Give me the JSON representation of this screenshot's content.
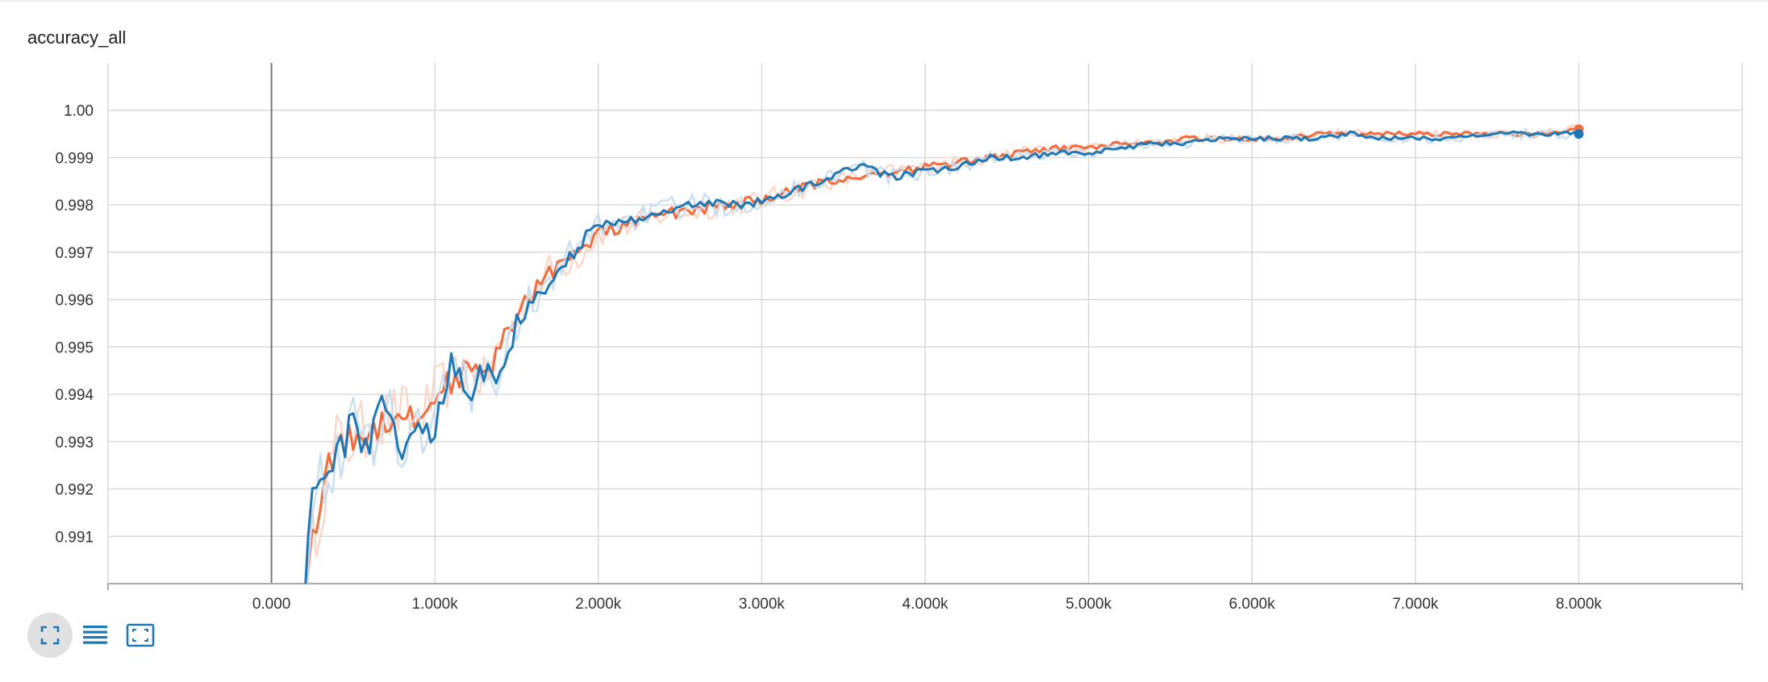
{
  "card": {
    "title": "accuracy_all"
  },
  "toolbar": {
    "buttons": [
      {
        "name": "expand-chart-button",
        "icon": "fullscreen-icon",
        "active": true
      },
      {
        "name": "toggle-y-log-button",
        "icon": "list-lines-icon",
        "active": false
      },
      {
        "name": "fit-domain-button",
        "icon": "fit-to-data-icon",
        "active": false
      }
    ]
  },
  "colors": {
    "orange": "#f26b3c",
    "blue": "#1f77b4",
    "orange_raw": "#fbd3c4",
    "blue_raw": "#c6dbef",
    "grid": "#d9d9d9"
  },
  "chart_data": {
    "type": "line",
    "title": "accuracy_all",
    "xlabel": "",
    "ylabel": "",
    "xlim": [
      -1000,
      9000
    ],
    "ylim": [
      0.99,
      1.001
    ],
    "grid": true,
    "x_ticks": [
      0,
      1000,
      2000,
      3000,
      4000,
      5000,
      6000,
      7000,
      8000
    ],
    "x_tick_labels": [
      "0.000",
      "1.000k",
      "2.000k",
      "3.000k",
      "4.000k",
      "5.000k",
      "6.000k",
      "7.000k",
      "8.000k"
    ],
    "y_ticks": [
      0.991,
      0.992,
      0.993,
      0.994,
      0.995,
      0.996,
      0.997,
      0.998,
      0.999,
      1.0
    ],
    "y_tick_labels": [
      "0.991",
      "0.992",
      "0.993",
      "0.994",
      "0.995",
      "0.996",
      "0.997",
      "0.998",
      "0.999",
      "1.00"
    ],
    "series": [
      {
        "color": "#f26b3c",
        "raw_color": "#fbd3c4",
        "x": [
          200,
          300,
          400,
          500,
          600,
          700,
          800,
          900,
          1000,
          1100,
          1200,
          1300,
          1400,
          1500,
          1600,
          1700,
          1800,
          1900,
          2000,
          2200,
          2400,
          2600,
          2800,
          3000,
          3200,
          3400,
          3600,
          3800,
          4000,
          4200,
          4400,
          4600,
          4800,
          5000,
          5200,
          5400,
          5600,
          5800,
          6000,
          6200,
          6400,
          6600,
          6800,
          7000,
          7200,
          7400,
          7600,
          7800,
          8000
        ],
        "values": [
          0.9899,
          0.9918,
          0.9929,
          0.9931,
          0.9932,
          0.9935,
          0.9936,
          0.9934,
          0.994,
          0.9943,
          0.9945,
          0.9943,
          0.995,
          0.9956,
          0.9962,
          0.9966,
          0.9968,
          0.997,
          0.9974,
          0.9976,
          0.9978,
          0.9979,
          0.998,
          0.9981,
          0.9983,
          0.9985,
          0.9986,
          0.9987,
          0.9988,
          0.9989,
          0.999,
          0.9991,
          0.9992,
          0.9992,
          0.9993,
          0.9993,
          0.9994,
          0.9994,
          0.9994,
          0.9994,
          0.9995,
          0.9995,
          0.9995,
          0.9995,
          0.9995,
          0.9995,
          0.9995,
          0.9995,
          0.9996
        ]
      },
      {
        "color": "#1f77b4",
        "raw_color": "#c6dbef",
        "x": [
          200,
          250,
          300,
          400,
          500,
          600,
          700,
          800,
          900,
          1000,
          1100,
          1200,
          1300,
          1400,
          1500,
          1600,
          1700,
          1800,
          1900,
          2000,
          2200,
          2400,
          2600,
          2800,
          3000,
          3200,
          3400,
          3600,
          3800,
          4000,
          4200,
          4400,
          4600,
          4800,
          5000,
          5200,
          5400,
          5600,
          5800,
          6000,
          6200,
          6400,
          6600,
          6800,
          7000,
          7200,
          7400,
          7600,
          7800,
          8000
        ],
        "values": [
          0.9899,
          0.9922,
          0.992,
          0.9928,
          0.9933,
          0.9929,
          0.994,
          0.9926,
          0.9934,
          0.9932,
          0.9948,
          0.994,
          0.9945,
          0.9943,
          0.9955,
          0.9961,
          0.9962,
          0.9968,
          0.9972,
          0.9976,
          0.9977,
          0.9979,
          0.998,
          0.998,
          0.9981,
          0.9983,
          0.9986,
          0.9988,
          0.9986,
          0.9987,
          0.9988,
          0.999,
          0.999,
          0.9991,
          0.9991,
          0.9992,
          0.9993,
          0.9993,
          0.9994,
          0.9994,
          0.9994,
          0.9994,
          0.9995,
          0.9994,
          0.9994,
          0.9994,
          0.9995,
          0.9995,
          0.9995,
          0.9995
        ]
      }
    ]
  }
}
